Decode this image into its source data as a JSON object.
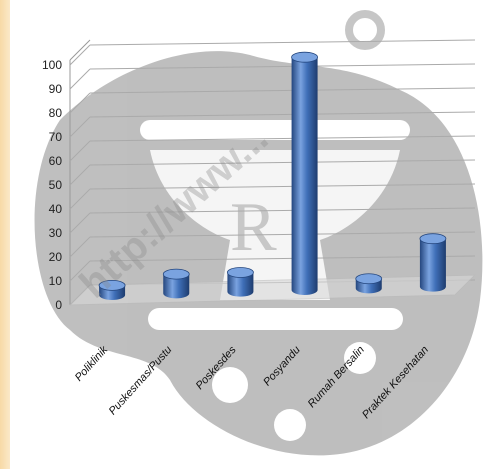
{
  "chart_data": {
    "type": "bar",
    "categories": [
      "Poliklinik",
      "Puskesmas/Pustu",
      "Poskesdes",
      "Posyandu",
      "Rumah Bersalin",
      "Praktek Kesehatan"
    ],
    "values": [
      4,
      8,
      8,
      97,
      4,
      20
    ],
    "ylim": [
      0,
      100
    ],
    "yticks": [
      0,
      10,
      20,
      30,
      40,
      50,
      60,
      70,
      80,
      90,
      100
    ],
    "grid": true,
    "colors": {
      "bar": "#3f6fb8",
      "bar_dark": "#24467e",
      "bar_light": "#7aa3e0"
    },
    "watermark": "http://www..."
  }
}
